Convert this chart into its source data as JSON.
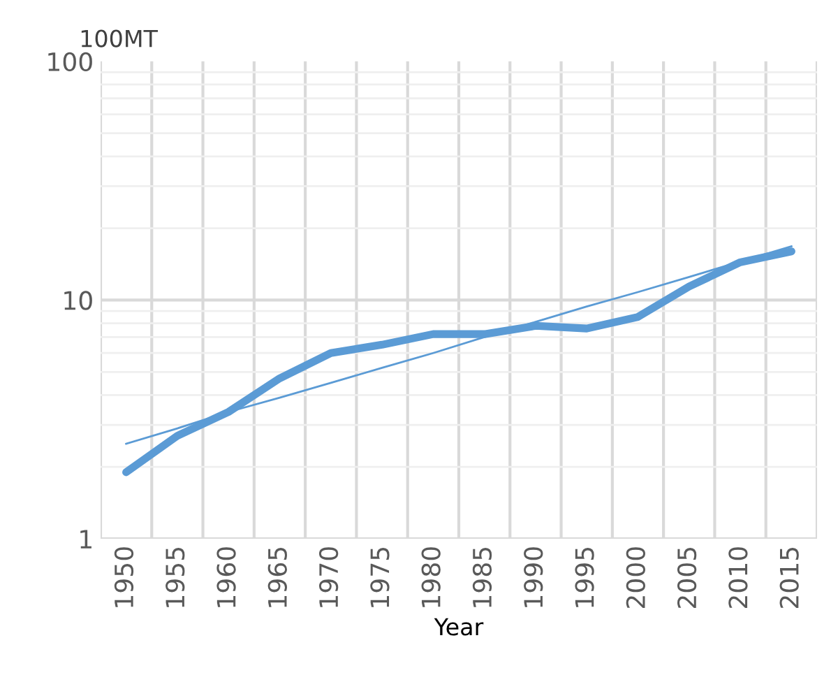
{
  "chart_data": {
    "type": "line",
    "ylabel": "100MT",
    "xlabel": "Year",
    "categories": [
      "1950",
      "1955",
      "1960",
      "1965",
      "1970",
      "1975",
      "1980",
      "1985",
      "1990",
      "1995",
      "2000",
      "2005",
      "2010",
      "2015"
    ],
    "series": [
      {
        "color": "#5b9bd5",
        "values": [
          1.9,
          2.7,
          3.4,
          4.7,
          6.0,
          6.5,
          7.2,
          7.2,
          7.8,
          7.6,
          8.5,
          11.4,
          14.4,
          16
        ]
      },
      {
        "type": "line",
        "color": "#5b9bd5",
        "values": [
          2.5,
          2.9,
          3.4,
          3.9,
          4.5,
          5.2,
          6.0,
          7.0,
          8.1,
          9.4,
          10.8,
          12.5,
          14.5,
          16.8
        ]
      }
    ],
    "log": "y",
    "ylim": [
      1,
      100
    ],
    "yticks": [
      1,
      10,
      100
    ],
    "grid": true,
    "marker": "none",
    "line_style": "solid"
  }
}
